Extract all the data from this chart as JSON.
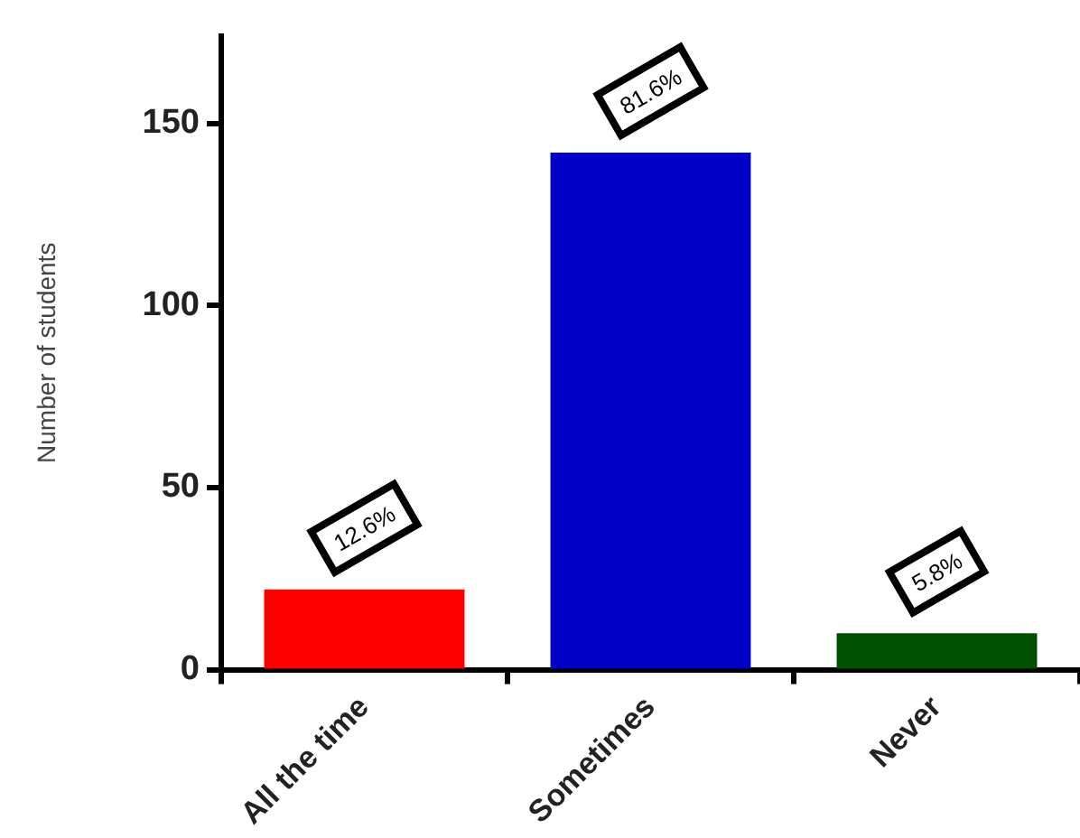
{
  "chart_data": {
    "type": "bar",
    "ylabel": "Number of students",
    "categories": [
      "All the time",
      "Sometimes",
      "Never"
    ],
    "values": [
      22,
      142,
      10
    ],
    "colors": [
      "#ff0000",
      "#0000c8",
      "#005000"
    ],
    "annotations": [
      {
        "text": "12.6%",
        "x": "All the time",
        "y": 22
      },
      {
        "text": "81.6%",
        "x": "Sometimes",
        "y": 142
      },
      {
        "text": "5.8%",
        "x": "Never",
        "y": 10
      }
    ],
    "ylim": [
      0,
      174
    ],
    "yticks": [
      0,
      50,
      100,
      150
    ],
    "grid": false,
    "legend": false
  }
}
